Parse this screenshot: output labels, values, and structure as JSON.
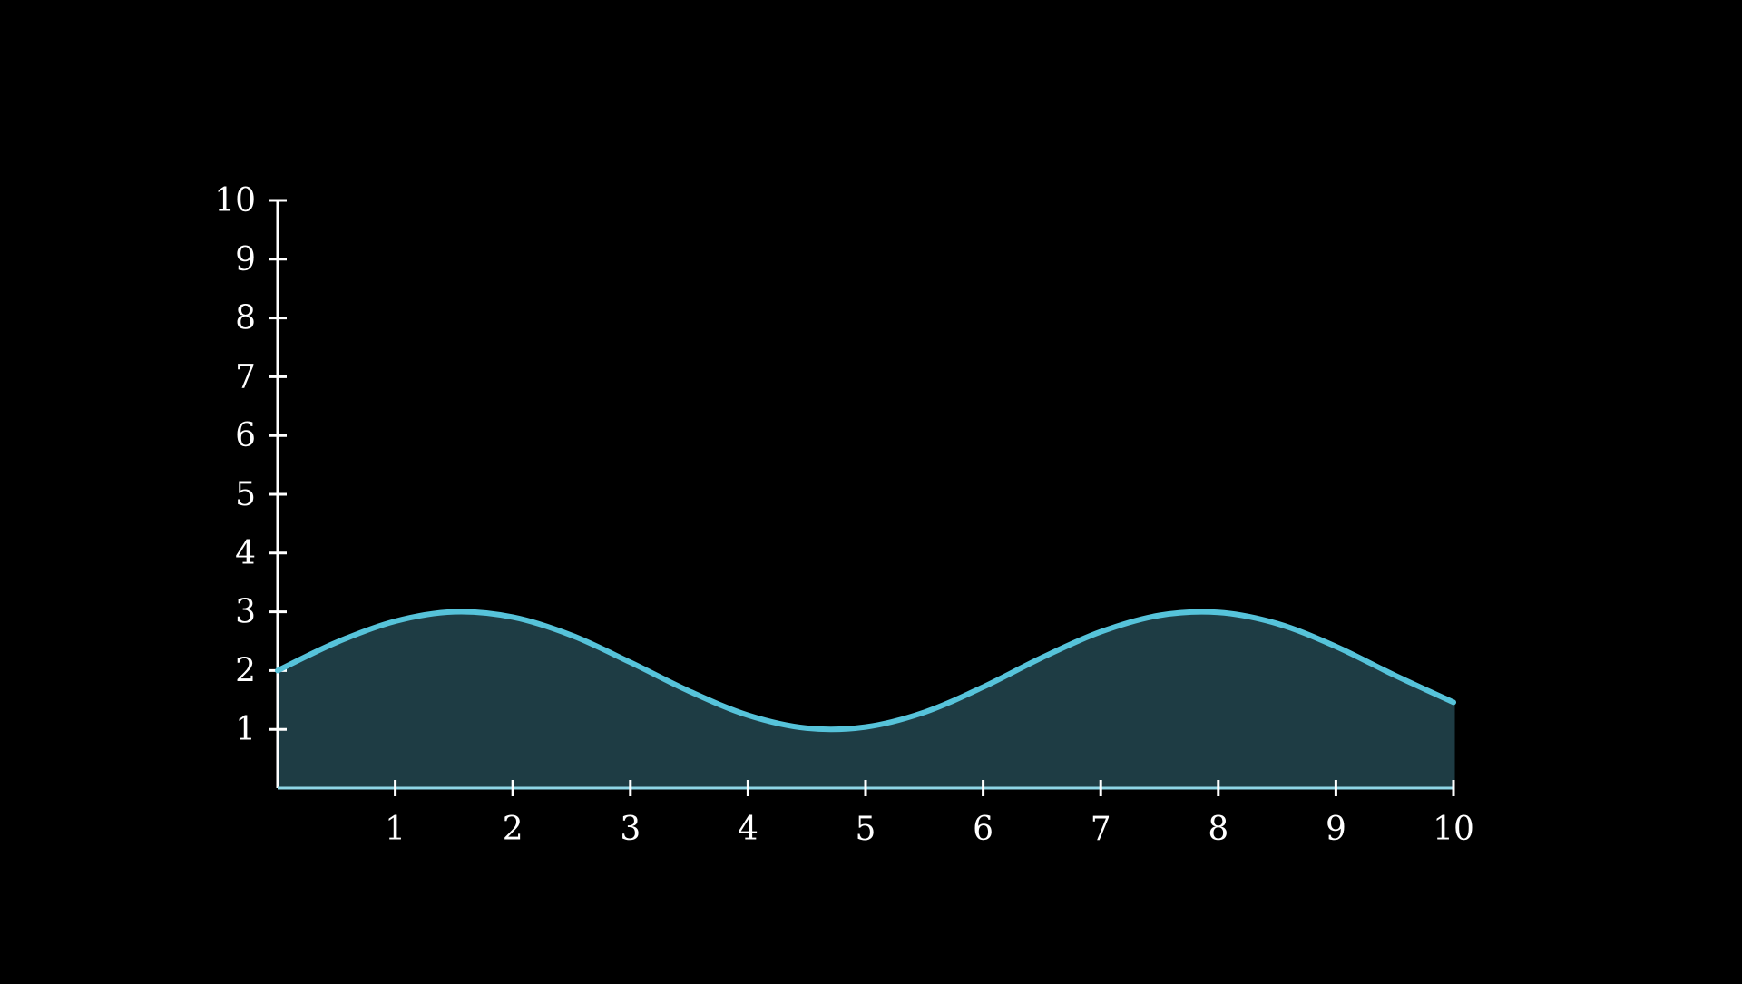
{
  "chart_data": {
    "type": "area",
    "title": "",
    "xlabel": "",
    "ylabel": "",
    "xlim": [
      0,
      10
    ],
    "ylim": [
      0,
      10
    ],
    "x_ticks": [
      1,
      2,
      3,
      4,
      5,
      6,
      7,
      8,
      9,
      10
    ],
    "y_ticks": [
      1,
      2,
      3,
      4,
      5,
      6,
      7,
      8,
      9,
      10
    ],
    "x_tick_labels": [
      "1",
      "2",
      "3",
      "4",
      "5",
      "6",
      "7",
      "8",
      "9",
      "10"
    ],
    "y_tick_labels": [
      "1",
      "2",
      "3",
      "4",
      "5",
      "6",
      "7",
      "8",
      "9",
      "10"
    ],
    "grid": false,
    "legend": "none",
    "series": [
      {
        "x": [
          0,
          0.5,
          1,
          1.5,
          2,
          2.5,
          3,
          3.5,
          4,
          4.5,
          5,
          5.5,
          6,
          6.5,
          7,
          7.5,
          8,
          8.5,
          9,
          9.5,
          10
        ],
        "values": [
          2.0,
          2.48,
          2.84,
          3.0,
          2.91,
          2.6,
          2.14,
          1.65,
          1.24,
          1.02,
          1.04,
          1.29,
          1.72,
          2.22,
          2.66,
          2.94,
          2.99,
          2.8,
          2.41,
          1.92,
          1.46
        ]
      }
    ]
  },
  "colors": {
    "background": "#000000",
    "axis": "#ffffff",
    "line": "#56c3da",
    "fill": "#1e3c44",
    "baseline": "#8fd6e6"
  }
}
